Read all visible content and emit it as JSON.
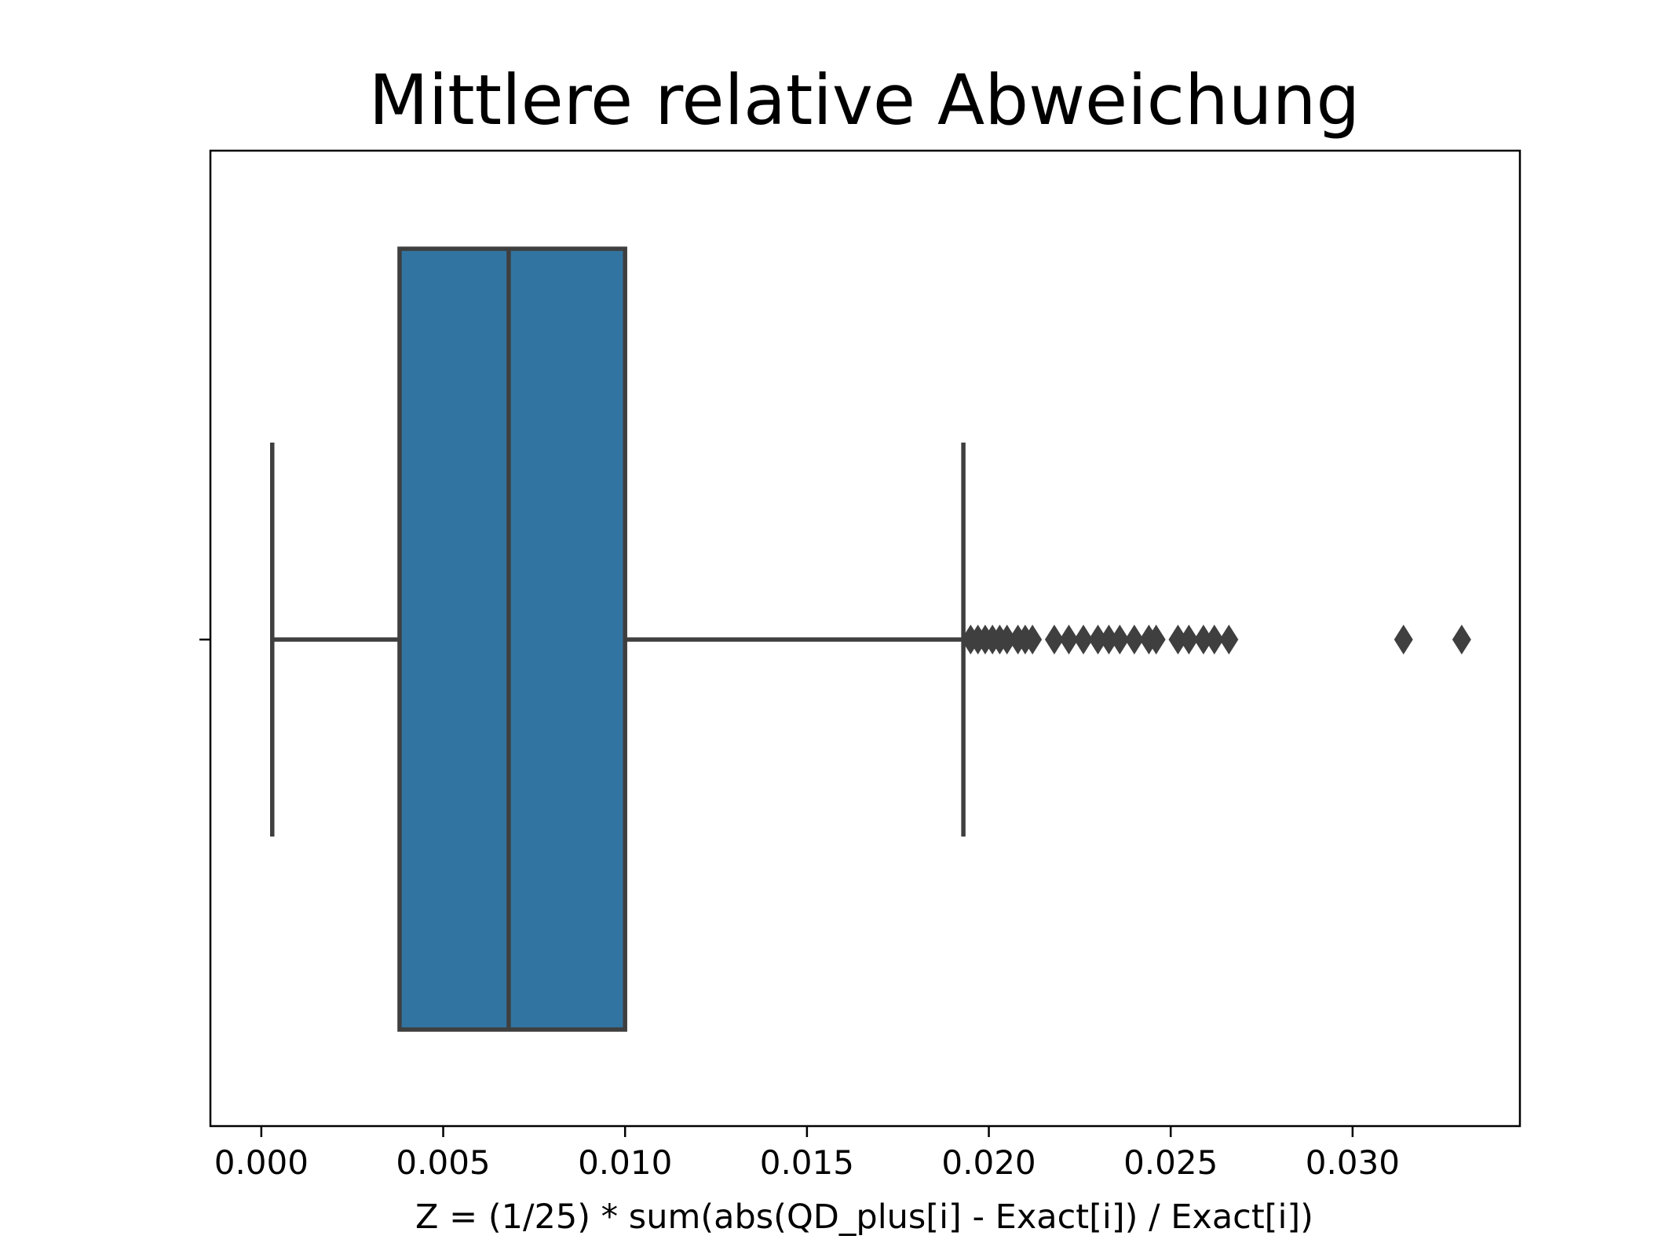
{
  "chart_data": {
    "type": "boxplot",
    "title": "Mittlere relative Abweichung",
    "xlabel": "Z = (1/25) * sum(abs(QD_plus[i] - Exact[i]) / Exact[i])",
    "ylabel": "",
    "xlim": [
      -0.0014,
      0.0346
    ],
    "xticks": [
      0.0,
      0.005,
      0.01,
      0.015,
      0.02,
      0.025,
      0.03
    ],
    "xtick_labels": [
      "0.000",
      "0.005",
      "0.010",
      "0.015",
      "0.020",
      "0.025",
      "0.030"
    ],
    "grid": false,
    "box": {
      "whisker_low": 0.0003,
      "q1": 0.0038,
      "median": 0.0068,
      "q3": 0.01,
      "whisker_high": 0.0193
    },
    "outliers": [
      0.0195,
      0.0197,
      0.0199,
      0.0201,
      0.0203,
      0.0205,
      0.0208,
      0.021,
      0.0212,
      0.0218,
      0.0222,
      0.0226,
      0.023,
      0.0233,
      0.0236,
      0.024,
      0.0244,
      0.0246,
      0.0252,
      0.0255,
      0.0259,
      0.0262,
      0.0266,
      0.0314,
      0.033
    ],
    "colors": {
      "box_fill": "#3274a1",
      "line": "#3f3f3f",
      "axes": "#000000"
    }
  }
}
